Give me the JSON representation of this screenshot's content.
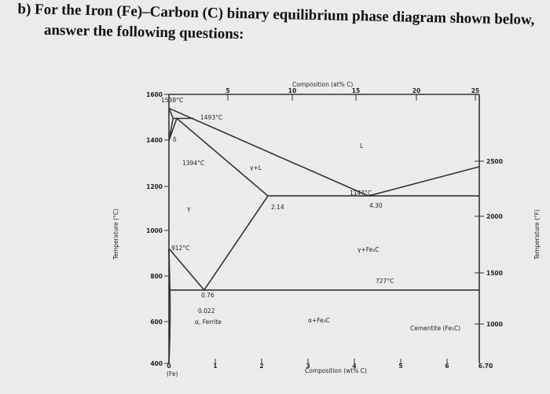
{
  "question": {
    "line1": "b) For the Iron (Fe)–Carbon (C) binary equilibrium phase diagram shown below,",
    "line2": "answer the following questions:"
  },
  "diagram": {
    "top_axis_title": "Composition (at% C)",
    "top_ticks": [
      "5",
      "10",
      "15",
      "20",
      "25"
    ],
    "left_ticks": [
      "1600",
      "1400",
      "1200",
      "1000",
      "800",
      "600",
      "400"
    ],
    "right_ticks": [
      "2500",
      "2000",
      "1500",
      "1000"
    ],
    "bottom_ticks": [
      "0",
      "1",
      "2",
      "3",
      "4",
      "5",
      "6",
      "6.70"
    ],
    "bottom_note": "(Fe)",
    "bottom_axis_title": "Composition (wt% C)",
    "left_axis_title": "Temperature (°C)",
    "right_axis_title": "Temperature (°F)",
    "labels": [
      "1538°C",
      "1493°C",
      "1394°C",
      "1147°C",
      "912°C",
      "727°C",
      "2.14",
      "4.30",
      "0.76",
      "0.022",
      "α, Ferrite",
      "γ+L",
      "L",
      "γ",
      "δ",
      "γ+Fe₃C",
      "α+Fe₃C",
      "Cementite (Fe₃C)"
    ]
  }
}
